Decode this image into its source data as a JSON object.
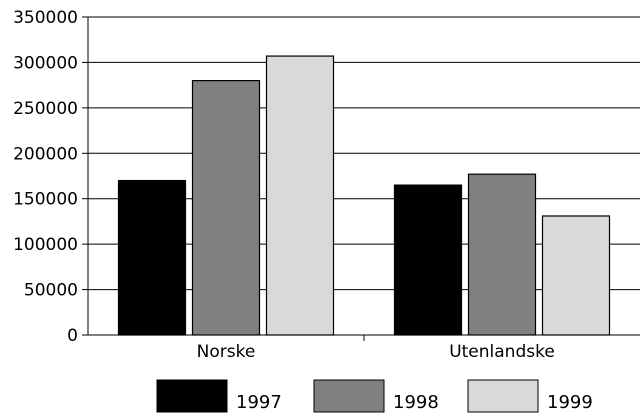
{
  "chart_data": {
    "type": "bar",
    "title": "",
    "xlabel": "",
    "ylabel": "",
    "categories": [
      "Norske",
      "Utenlandske"
    ],
    "series": [
      {
        "name": "1997",
        "values": [
          170000,
          165000
        ],
        "color": "#000000"
      },
      {
        "name": "1998",
        "values": [
          280000,
          177000
        ],
        "color": "#808080"
      },
      {
        "name": "1999",
        "values": [
          307000,
          131000
        ],
        "color": "#d9d9d9"
      }
    ],
    "ylim": [
      0,
      350000
    ],
    "yticks": [
      "0",
      "50000",
      "100000",
      "150000",
      "200000",
      "250000",
      "300000",
      "350000"
    ],
    "grid": true,
    "legend_position": "bottom"
  }
}
